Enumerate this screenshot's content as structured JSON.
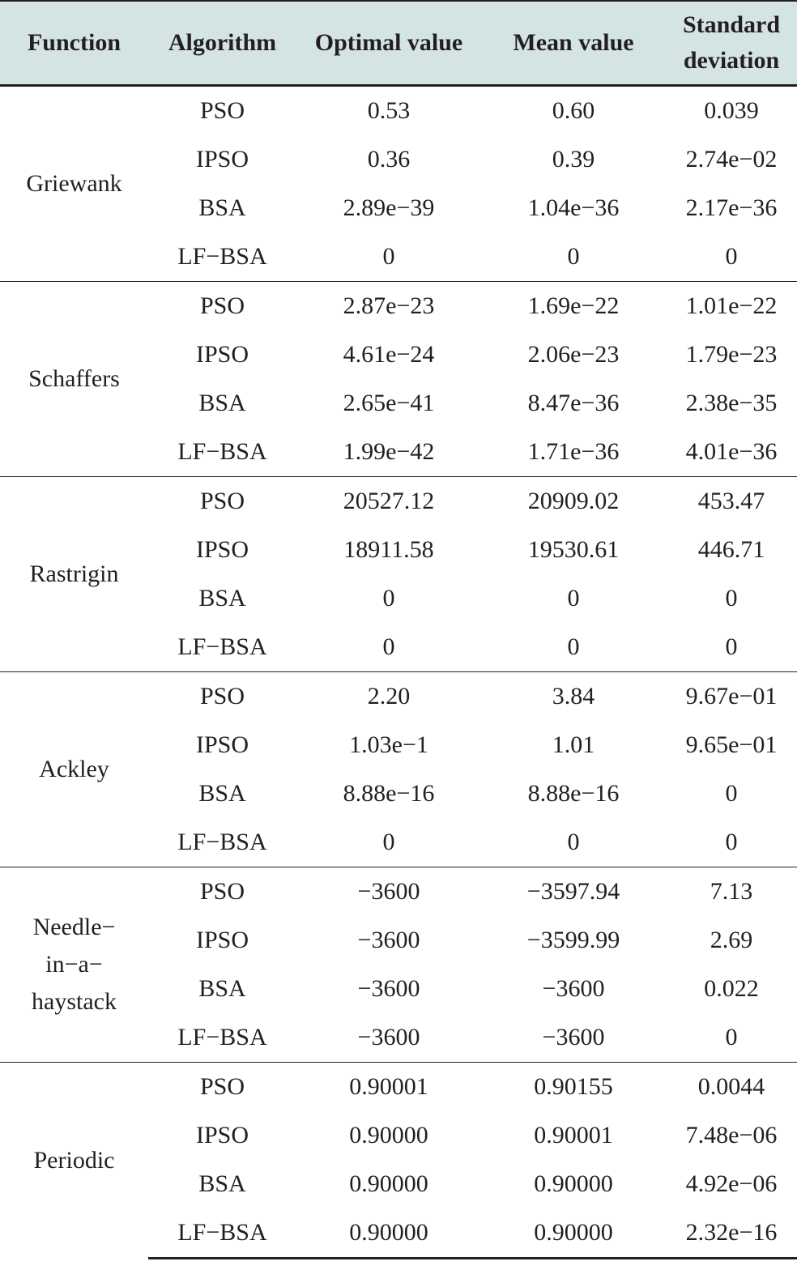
{
  "headers": {
    "function": "Function",
    "algorithm": "Algorithm",
    "optimal": "Optimal value",
    "mean": "Mean value",
    "std_line1": "Standard",
    "std_line2": "deviation"
  },
  "groups": [
    {
      "function": "Griewank",
      "rows": [
        {
          "algorithm": "PSO",
          "optimal": "0.53",
          "mean": "0.60",
          "std": "0.039"
        },
        {
          "algorithm": "IPSO",
          "optimal": "0.36",
          "mean": "0.39",
          "std": "2.74e−02"
        },
        {
          "algorithm": "BSA",
          "optimal": "2.89e−39",
          "mean": "1.04e−36",
          "std": "2.17e−36"
        },
        {
          "algorithm": "LF−BSA",
          "optimal": "0",
          "mean": "0",
          "std": "0"
        }
      ]
    },
    {
      "function": "Schaffers",
      "rows": [
        {
          "algorithm": "PSO",
          "optimal": "2.87e−23",
          "mean": "1.69e−22",
          "std": "1.01e−22"
        },
        {
          "algorithm": "IPSO",
          "optimal": "4.61e−24",
          "mean": "2.06e−23",
          "std": "1.79e−23"
        },
        {
          "algorithm": "BSA",
          "optimal": "2.65e−41",
          "mean": "8.47e−36",
          "std": "2.38e−35"
        },
        {
          "algorithm": "LF−BSA",
          "optimal": "1.99e−42",
          "mean": "1.71e−36",
          "std": "4.01e−36"
        }
      ]
    },
    {
      "function": "Rastrigin",
      "rows": [
        {
          "algorithm": "PSO",
          "optimal": "20527.12",
          "mean": "20909.02",
          "std": "453.47"
        },
        {
          "algorithm": "IPSO",
          "optimal": "18911.58",
          "mean": "19530.61",
          "std": "446.71"
        },
        {
          "algorithm": "BSA",
          "optimal": "0",
          "mean": "0",
          "std": "0"
        },
        {
          "algorithm": "LF−BSA",
          "optimal": "0",
          "mean": "0",
          "std": "0"
        }
      ]
    },
    {
      "function": "Ackley",
      "rows": [
        {
          "algorithm": "PSO",
          "optimal": "2.20",
          "mean": "3.84",
          "std": "9.67e−01"
        },
        {
          "algorithm": "IPSO",
          "optimal": "1.03e−1",
          "mean": "1.01",
          "std": "9.65e−01"
        },
        {
          "algorithm": "BSA",
          "optimal": "8.88e−16",
          "mean": "8.88e−16",
          "std": "0"
        },
        {
          "algorithm": "LF−BSA",
          "optimal": "0",
          "mean": "0",
          "std": "0"
        }
      ]
    },
    {
      "function_lines": [
        "Needle−",
        "in−a−",
        "haystack"
      ],
      "rows": [
        {
          "algorithm": "PSO",
          "optimal": "−3600",
          "mean": "−3597.94",
          "std": "7.13"
        },
        {
          "algorithm": "IPSO",
          "optimal": "−3600",
          "mean": "−3599.99",
          "std": "2.69"
        },
        {
          "algorithm": "BSA",
          "optimal": "−3600",
          "mean": "−3600",
          "std": "0.022"
        },
        {
          "algorithm": "LF−BSA",
          "optimal": "−3600",
          "mean": "−3600",
          "std": "0"
        }
      ]
    },
    {
      "function": "Periodic",
      "rows": [
        {
          "algorithm": "PSO",
          "optimal": "0.90001",
          "mean": "0.90155",
          "std": "0.0044"
        },
        {
          "algorithm": "IPSO",
          "optimal": "0.90000",
          "mean": "0.90001",
          "std": "7.48e−06"
        },
        {
          "algorithm": "BSA",
          "optimal": "0.90000",
          "mean": "0.90000",
          "std": "4.92e−06"
        },
        {
          "algorithm": "LF−BSA",
          "optimal": "0.90000",
          "mean": "0.90000",
          "std": "2.32e−16"
        }
      ]
    }
  ]
}
